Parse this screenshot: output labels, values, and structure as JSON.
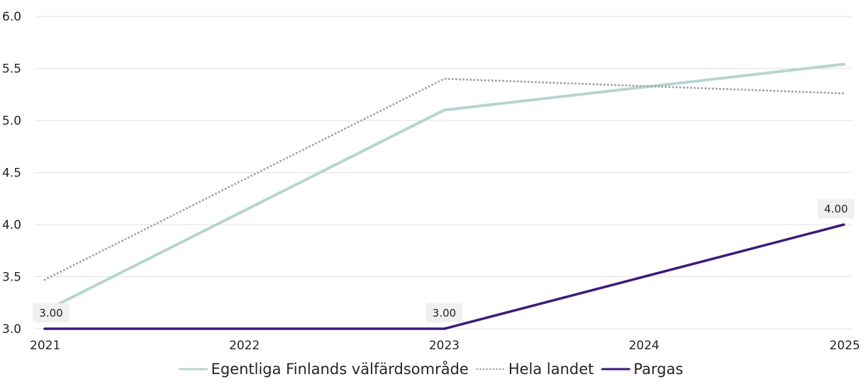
{
  "chart_data": {
    "type": "line",
    "title": "",
    "xlabel": "",
    "ylabel": "",
    "x": [
      2021,
      2022,
      2023,
      2024,
      2025
    ],
    "x_tick_labels": [
      "2021",
      "2022",
      "2023",
      "2024",
      "2025"
    ],
    "ylim": [
      3.0,
      6.0
    ],
    "y_ticks": [
      3.0,
      3.5,
      4.0,
      4.5,
      5.0,
      5.5,
      6.0
    ],
    "y_tick_labels": [
      "3.0",
      "3.5",
      "4.0",
      "4.5",
      "5.0",
      "5.5",
      "6.0"
    ],
    "grid": "horizontal",
    "legend_position": "bottom-center",
    "series": [
      {
        "name": "Egentliga Finlands välfärdsområde",
        "points": [
          [
            2021,
            3.17
          ],
          [
            2023,
            5.1
          ],
          [
            2025,
            5.54
          ]
        ],
        "color": "#b7d5cf",
        "style": "solid"
      },
      {
        "name": "Hela landet",
        "points": [
          [
            2021,
            3.47
          ],
          [
            2023,
            5.4
          ],
          [
            2025,
            5.26
          ]
        ],
        "color": "#a6a6a6",
        "style": "dotted"
      },
      {
        "name": "Pargas",
        "points": [
          [
            2021,
            3.0
          ],
          [
            2023,
            3.0
          ],
          [
            2025,
            4.0
          ]
        ],
        "color": "#3c1a7c",
        "style": "solid",
        "data_labels": [
          {
            "x": 2021,
            "y": 3.0,
            "text": "3.00"
          },
          {
            "x": 2023,
            "y": 3.0,
            "text": "3.00"
          },
          {
            "x": 2025,
            "y": 4.0,
            "text": "4.00"
          }
        ]
      }
    ]
  }
}
